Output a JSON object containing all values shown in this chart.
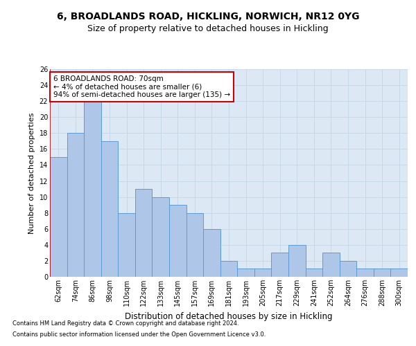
{
  "title1": "6, BROADLANDS ROAD, HICKLING, NORWICH, NR12 0YG",
  "title2": "Size of property relative to detached houses in Hickling",
  "xlabel": "Distribution of detached houses by size in Hickling",
  "ylabel": "Number of detached properties",
  "categories": [
    "62sqm",
    "74sqm",
    "86sqm",
    "98sqm",
    "110sqm",
    "122sqm",
    "133sqm",
    "145sqm",
    "157sqm",
    "169sqm",
    "181sqm",
    "193sqm",
    "205sqm",
    "217sqm",
    "229sqm",
    "241sqm",
    "252sqm",
    "264sqm",
    "276sqm",
    "288sqm",
    "300sqm"
  ],
  "values": [
    15,
    18,
    22,
    17,
    8,
    11,
    10,
    9,
    8,
    6,
    2,
    1,
    1,
    3,
    4,
    1,
    3,
    2,
    1,
    1,
    1
  ],
  "bar_color": "#aec6e8",
  "bar_edge_color": "#5b9bd5",
  "annotation_text": "6 BROADLANDS ROAD: 70sqm\n← 4% of detached houses are smaller (6)\n94% of semi-detached houses are larger (135) →",
  "annotation_box_color": "#ffffff",
  "annotation_box_edge_color": "#cc0000",
  "ylim": [
    0,
    26
  ],
  "yticks": [
    0,
    2,
    4,
    6,
    8,
    10,
    12,
    14,
    16,
    18,
    20,
    22,
    24,
    26
  ],
  "footer1": "Contains HM Land Registry data © Crown copyright and database right 2024.",
  "footer2": "Contains public sector information licensed under the Open Government Licence v3.0.",
  "grid_color": "#c8d8e8",
  "background_color": "#dce9f5",
  "title_fontsize": 10,
  "subtitle_fontsize": 9,
  "xlabel_fontsize": 8.5,
  "ylabel_fontsize": 8,
  "tick_fontsize": 7,
  "footer_fontsize": 6,
  "ann_fontsize": 7.5,
  "red_line_color": "#cc0000",
  "highlight_bar_index": 0
}
